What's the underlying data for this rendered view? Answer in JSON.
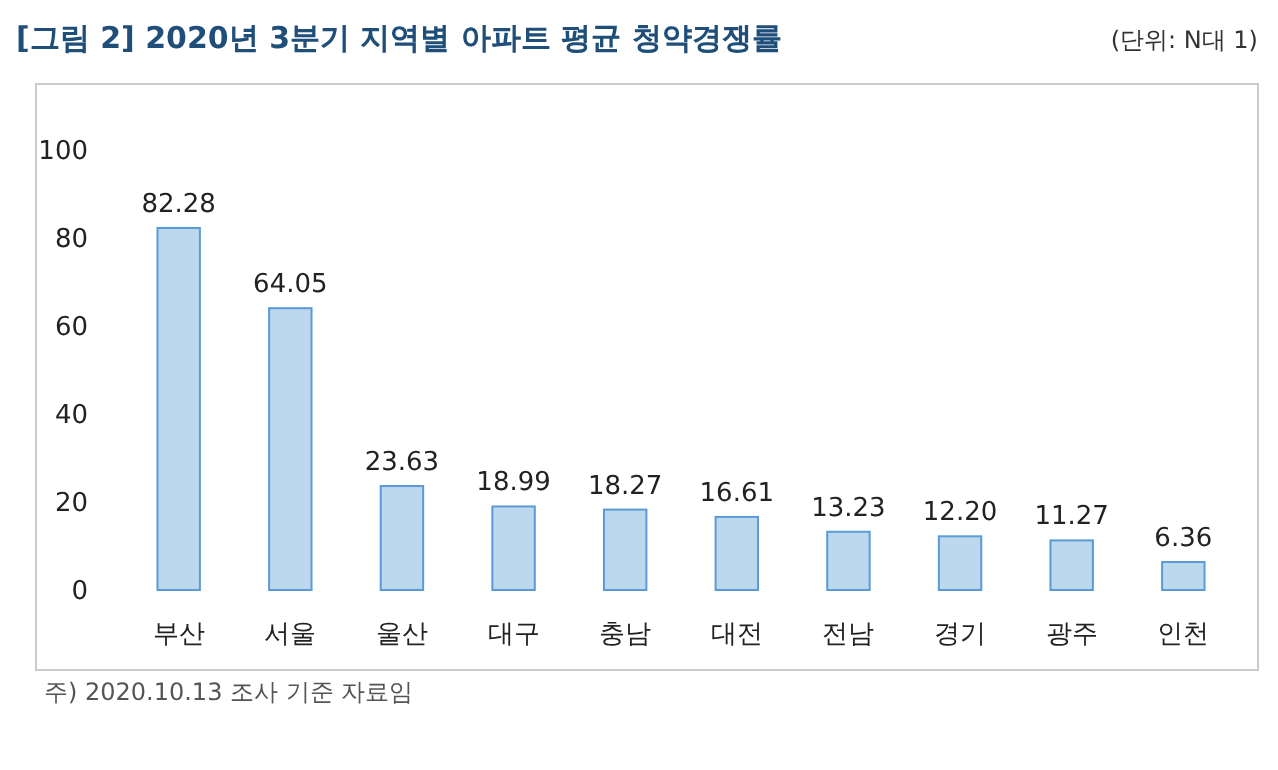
{
  "chart_data": {
    "type": "bar",
    "title": "[그림 2] 2020년 3분기 지역별 아파트 평균 청약경쟁률",
    "subtitle": "(단위: N대 1)",
    "categories": [
      "부산",
      "서울",
      "울산",
      "대구",
      "충남",
      "대전",
      "전남",
      "경기",
      "광주",
      "인천"
    ],
    "values": [
      82.28,
      64.05,
      23.63,
      18.99,
      18.27,
      16.61,
      13.23,
      12.2,
      11.27,
      6.36
    ],
    "value_labels": [
      "82.28",
      "64.05",
      "23.63",
      "18.99",
      "18.27",
      "16.61",
      "13.23",
      "12.20",
      "11.27",
      "6.36"
    ],
    "color": "#bdd7ee",
    "ylim": [
      0,
      100
    ],
    "yticks": [
      0,
      20,
      40,
      60,
      80,
      100
    ],
    "grid": false,
    "annotations": [
      "주) 2020.10.13 조사 기준 자료임"
    ]
  }
}
